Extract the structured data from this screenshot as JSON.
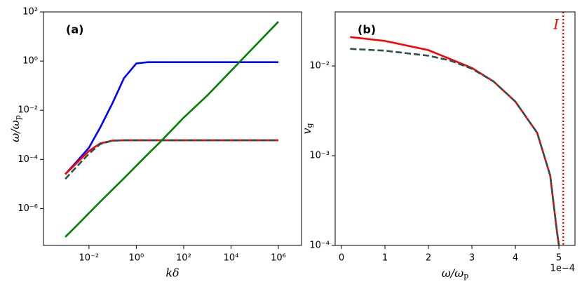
{
  "chart_data": [
    {
      "type": "line",
      "title": "(a)",
      "xlabel": "kδ",
      "ylabel": {
        "text": "ω/ω",
        "sub": "p"
      },
      "xscale": "log",
      "yscale": "log",
      "xlim": [
        0.00012,
        9500000
      ],
      "ylim": [
        3.16e-08,
        100
      ],
      "xticks": [
        {
          "value": 0.01,
          "label": "10⁻²"
        },
        {
          "value": 1,
          "label": "10⁰"
        },
        {
          "value": 100,
          "label": "10²"
        },
        {
          "value": 10000,
          "label": "10⁴"
        },
        {
          "value": 1000000,
          "label": "10⁶"
        }
      ],
      "yticks": [
        {
          "value": 1e-06,
          "label": "10⁻⁶"
        },
        {
          "value": 0.0001,
          "label": "10⁻⁴"
        },
        {
          "value": 0.01,
          "label": "10⁻²"
        },
        {
          "value": 1,
          "label": "10⁰"
        },
        {
          "value": 100,
          "label": "10²"
        }
      ],
      "x": [
        0.001,
        0.003,
        0.01,
        0.03,
        0.1,
        0.3,
        1,
        3,
        10,
        100,
        1000,
        10000,
        100000,
        1000000
      ],
      "series": [
        {
          "color": "#0000ff",
          "dash": false,
          "values": [
            2.5e-05,
            8e-05,
            0.0003,
            0.002,
            0.02,
            0.2,
            0.8,
            0.9,
            0.9,
            0.9,
            0.9,
            0.9,
            0.9,
            0.9
          ]
        },
        {
          "color": "#ff0000",
          "dash": false,
          "values": [
            2.5e-05,
            7e-05,
            0.00022,
            0.00045,
            0.00058,
            0.0006,
            0.0006,
            0.0006,
            0.0006,
            0.0006,
            0.0006,
            0.0006,
            0.0006,
            0.0006
          ]
        },
        {
          "color": "#2f4f4f",
          "dash": true,
          "values": [
            1.6e-05,
            5e-05,
            0.00017,
            0.00042,
            0.00058,
            0.0006,
            0.0006,
            0.0006,
            0.0006,
            0.0006,
            0.0006,
            0.0006,
            0.0006,
            0.0006
          ]
        },
        {
          "color": "#008000",
          "dash": false,
          "values": [
            7e-08,
            2e-07,
            6.5e-07,
            1.9e-06,
            6e-06,
            1.7e-05,
            5.5e-05,
            0.00016,
            0.0005,
            0.005,
            0.04,
            0.4,
            4,
            40
          ]
        }
      ]
    },
    {
      "type": "line",
      "title": "(b)",
      "xlabel": {
        "text": "ω/ω",
        "sub": "p"
      },
      "ylabel": {
        "text": "v",
        "sub": "g"
      },
      "xscale": "linear",
      "yscale": "log",
      "xlim": [
        -1.45e-05,
        0.000537
      ],
      "ylim": [
        0.0001,
        0.04
      ],
      "xticks": [
        0,
        {
          "value": 0.0001,
          "label": "1"
        },
        {
          "value": 0.0002,
          "label": "2"
        },
        {
          "value": 0.0003,
          "label": "3"
        },
        {
          "value": 0.0004,
          "label": "4"
        },
        {
          "value": 0.0005,
          "label": "5"
        }
      ],
      "x_offset_label": "1e−4",
      "yticks": [
        {
          "value": 0.0001,
          "label": "10⁻⁴"
        },
        {
          "value": 0.001,
          "label": "10⁻³"
        },
        {
          "value": 0.01,
          "label": "10⁻²"
        }
      ],
      "vline": {
        "x": 0.00051,
        "label": "I",
        "color": "#ff0000"
      },
      "series": [
        {
          "color": "#ff0000",
          "dash": false,
          "x": [
            2e-05,
            0.0001,
            0.0002,
            0.0003,
            0.00035,
            0.0004,
            0.00045,
            0.00048,
            0.000495,
            0.0005
          ],
          "values": [
            0.021,
            0.019,
            0.015,
            0.0095,
            0.0067,
            0.004,
            0.0018,
            0.0006,
            0.00015,
            0.0001
          ]
        },
        {
          "color": "#2f4f4f",
          "dash": true,
          "x": [
            2e-05,
            0.0001,
            0.0002,
            0.00025,
            0.0003,
            0.00035,
            0.0004,
            0.00045,
            0.00048,
            0.000495,
            0.0005
          ],
          "values": [
            0.0155,
            0.0148,
            0.013,
            0.0115,
            0.0093,
            0.0067,
            0.004,
            0.0018,
            0.0006,
            0.00015,
            0.0001
          ]
        }
      ]
    }
  ]
}
